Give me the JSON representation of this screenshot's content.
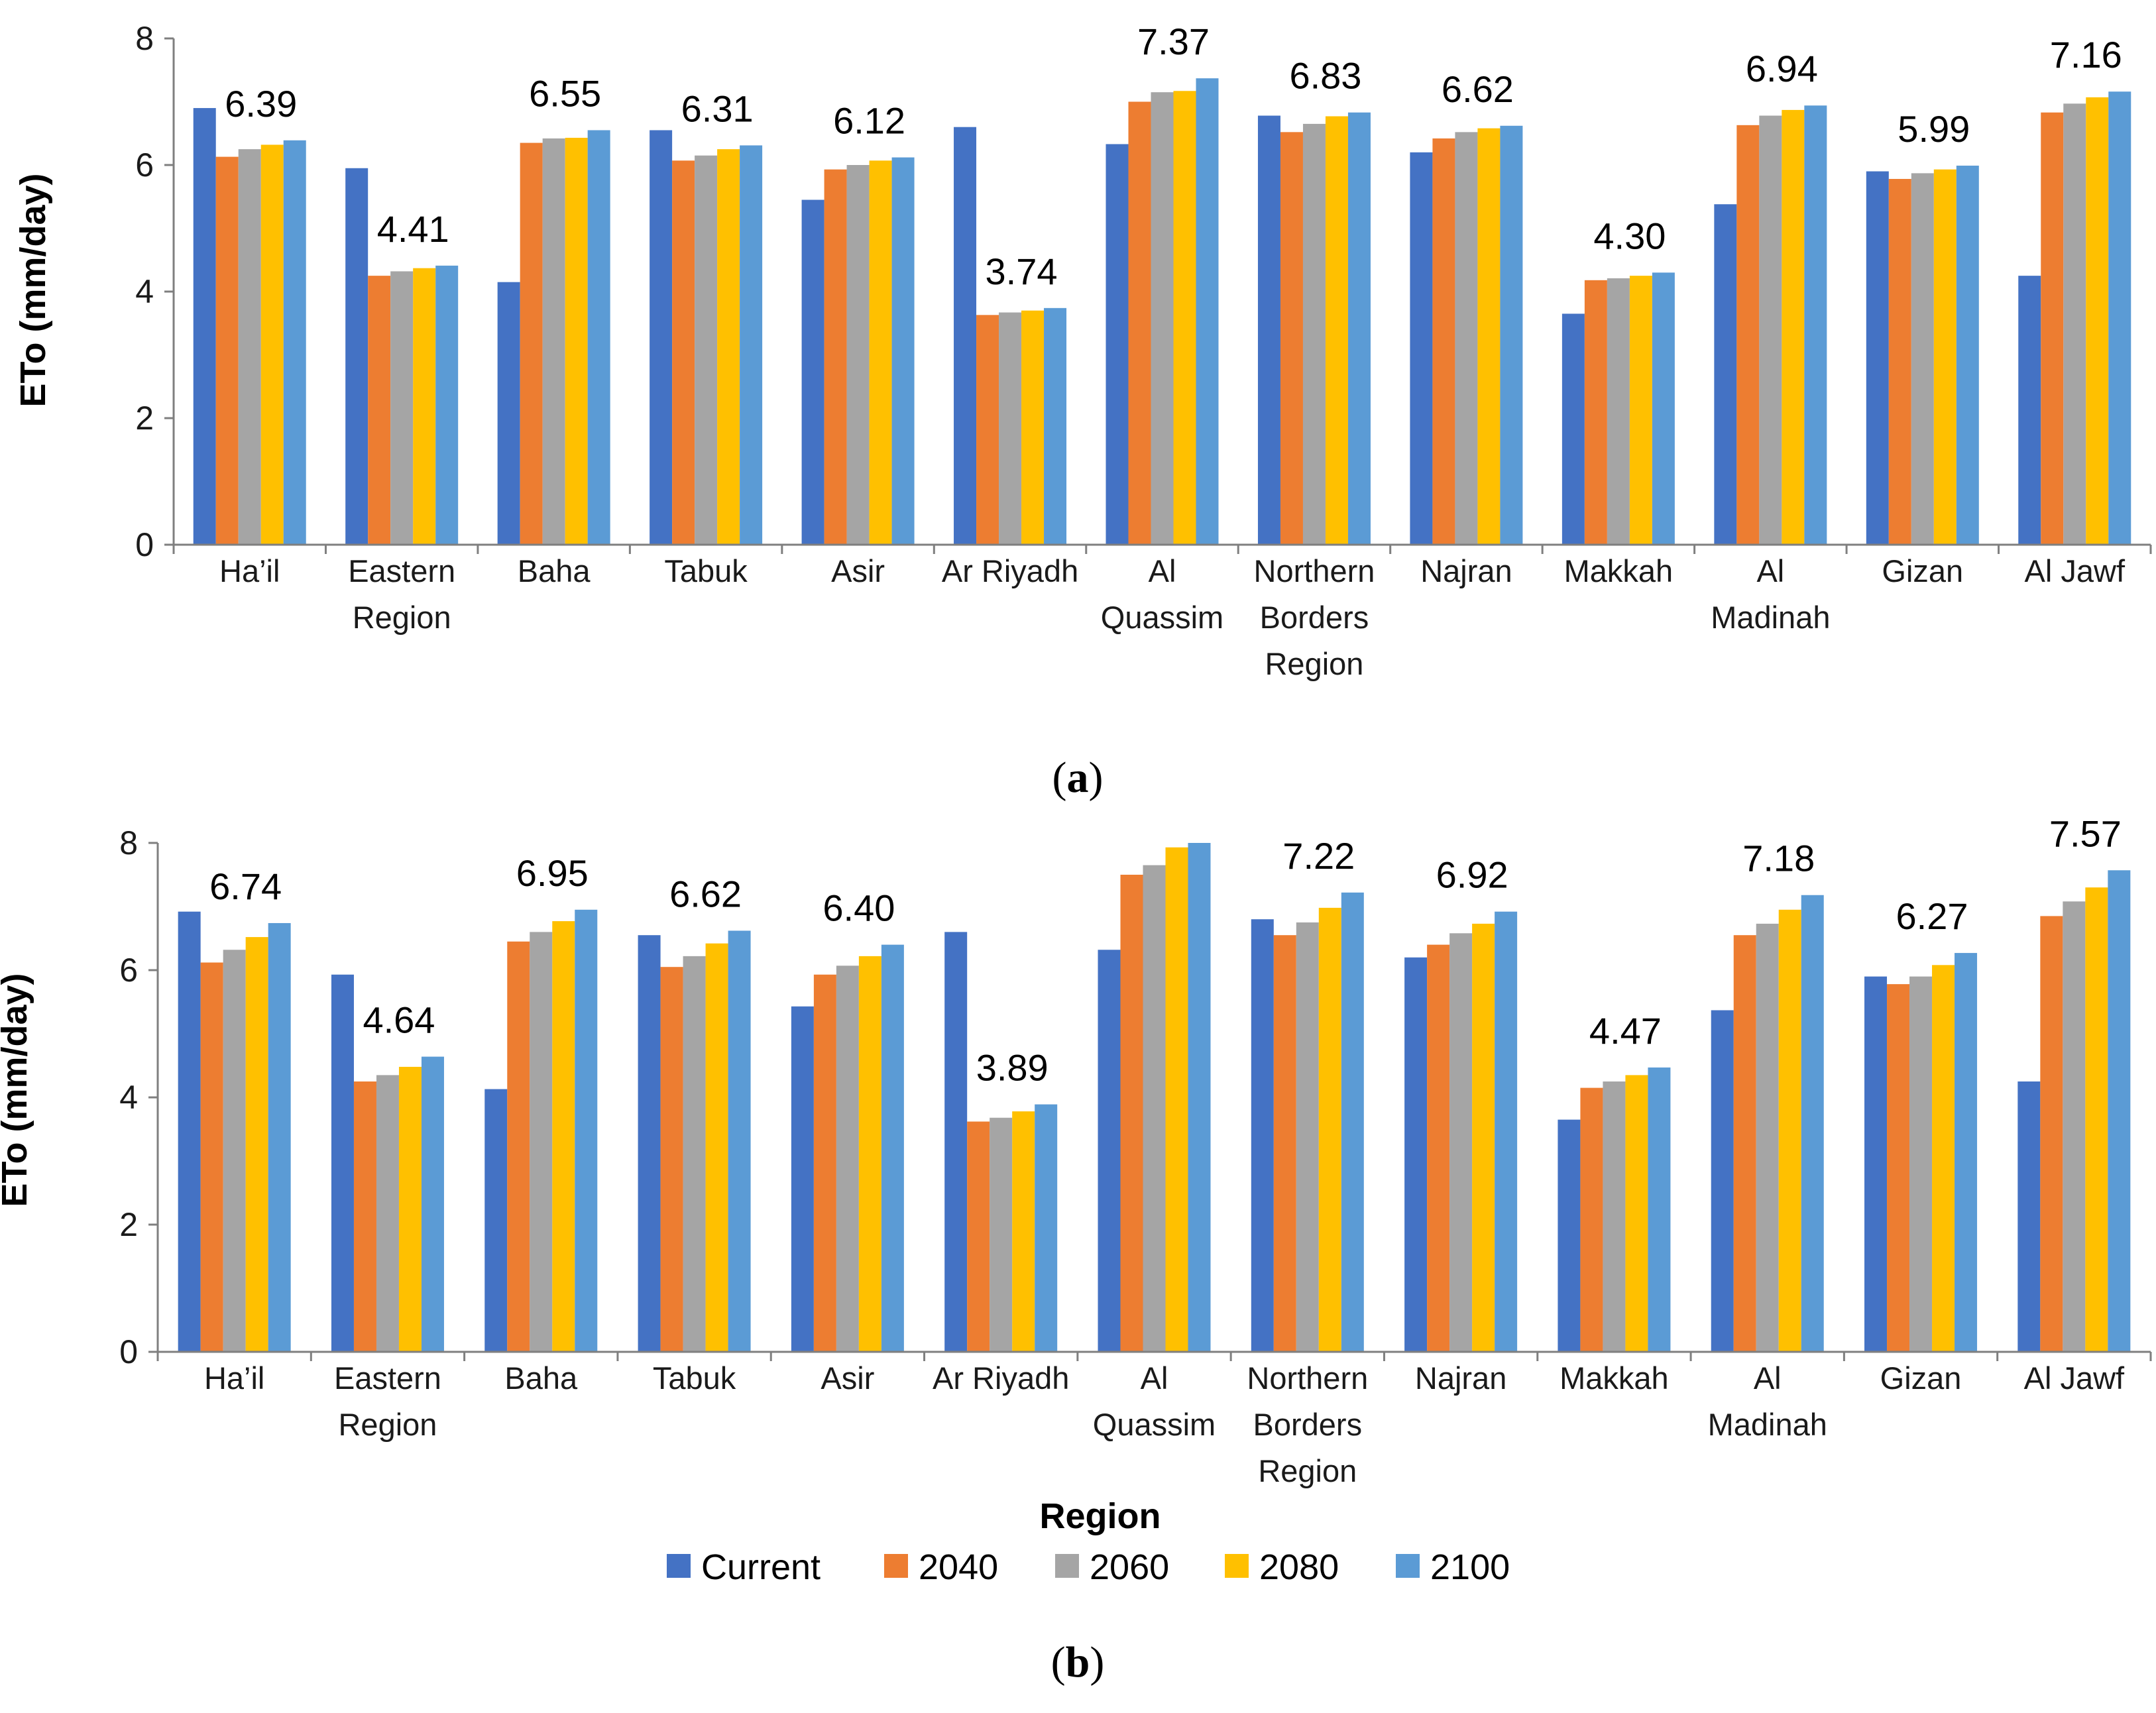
{
  "series_names": [
    "Current",
    "2040",
    "2060",
    "2080",
    "2100"
  ],
  "colors": {
    "Current": "#4472C4",
    "2040": "#ED7D31",
    "2060": "#A5A5A5",
    "2080": "#FFC000",
    "2100": "#5B9BD5"
  },
  "chart_data": [
    {
      "type": "bar",
      "panel": "a",
      "caption_letter": "a",
      "ylabel": "ETo (mm/day)",
      "xlabel": "",
      "ylim": [
        0,
        8
      ],
      "yticks": [
        "0",
        "2",
        "4",
        "6",
        "8"
      ],
      "categories": [
        [
          "Ha’il"
        ],
        [
          "Eastern",
          "Region"
        ],
        [
          "Baha"
        ],
        [
          "Tabuk"
        ],
        [
          "Asir"
        ],
        [
          "Ar Riyadh"
        ],
        [
          "Al",
          "Quassim"
        ],
        [
          "Northern",
          "Borders",
          "Region"
        ],
        [
          "Najran"
        ],
        [
          "Makkah"
        ],
        [
          "Al",
          "Madinah"
        ],
        [
          "Gizan"
        ],
        [
          "Al Jawf"
        ]
      ],
      "series": [
        {
          "name": "Current",
          "values": [
            6.9,
            5.95,
            4.15,
            6.55,
            5.45,
            6.6,
            6.33,
            6.78,
            6.2,
            3.65,
            5.38,
            5.9,
            4.25
          ]
        },
        {
          "name": "2040",
          "values": [
            6.13,
            4.25,
            6.35,
            6.07,
            5.93,
            3.63,
            7.0,
            6.52,
            6.42,
            4.18,
            6.63,
            5.78,
            6.83
          ]
        },
        {
          "name": "2060",
          "values": [
            6.25,
            4.32,
            6.42,
            6.15,
            6.0,
            3.67,
            7.15,
            6.65,
            6.52,
            4.21,
            6.78,
            5.87,
            6.97
          ]
        },
        {
          "name": "2080",
          "values": [
            6.32,
            4.37,
            6.43,
            6.25,
            6.07,
            3.7,
            7.17,
            6.77,
            6.58,
            4.25,
            6.87,
            5.93,
            7.07
          ]
        },
        {
          "name": "2100",
          "values": [
            6.39,
            4.41,
            6.55,
            6.31,
            6.12,
            3.74,
            7.37,
            6.83,
            6.62,
            4.3,
            6.94,
            5.99,
            7.16
          ]
        }
      ],
      "data_labels": [
        "6.39",
        "4.41",
        "6.55",
        "6.31",
        "6.12",
        "3.74",
        "7.37",
        "6.83",
        "6.62",
        "4.30",
        "6.94",
        "5.99",
        "7.16"
      ]
    },
    {
      "type": "bar",
      "panel": "b",
      "caption_letter": "b",
      "ylabel": "ETo (mm/day)",
      "xlabel": "Region",
      "ylim": [
        0,
        8
      ],
      "yticks": [
        "0",
        "2",
        "4",
        "6",
        "8"
      ],
      "categories": [
        [
          "Ha’il"
        ],
        [
          "Eastern",
          "Region"
        ],
        [
          "Baha"
        ],
        [
          "Tabuk"
        ],
        [
          "Asir"
        ],
        [
          "Ar Riyadh"
        ],
        [
          "Al",
          "Quassim"
        ],
        [
          "Northern",
          "Borders",
          "Region"
        ],
        [
          "Najran"
        ],
        [
          "Makkah"
        ],
        [
          "Al",
          "Madinah"
        ],
        [
          "Gizan"
        ],
        [
          "Al Jawf"
        ]
      ],
      "series": [
        {
          "name": "Current",
          "values": [
            6.92,
            5.93,
            4.13,
            6.55,
            5.43,
            6.6,
            6.32,
            6.8,
            6.2,
            3.65,
            5.37,
            5.9,
            4.25
          ]
        },
        {
          "name": "2040",
          "values": [
            6.12,
            4.25,
            6.45,
            6.05,
            5.93,
            3.62,
            7.5,
            6.55,
            6.4,
            4.15,
            6.55,
            5.78,
            6.85
          ]
        },
        {
          "name": "2060",
          "values": [
            6.32,
            4.35,
            6.6,
            6.22,
            6.07,
            3.68,
            7.65,
            6.75,
            6.58,
            4.25,
            6.73,
            5.9,
            7.08
          ]
        },
        {
          "name": "2080",
          "values": [
            6.52,
            4.48,
            6.77,
            6.42,
            6.22,
            3.78,
            7.93,
            6.98,
            6.73,
            4.35,
            6.95,
            6.08,
            7.3
          ]
        },
        {
          "name": "2100",
          "values": [
            6.74,
            4.64,
            6.95,
            6.62,
            6.4,
            3.89,
            8.0,
            7.22,
            6.92,
            4.47,
            7.18,
            6.27,
            7.57
          ]
        }
      ],
      "data_labels": [
        "6.74",
        "4.64",
        "6.95",
        "6.62",
        "6.40",
        "3.89",
        "",
        "7.22",
        "6.92",
        "4.47",
        "7.18",
        "6.27",
        "7.57"
      ]
    }
  ]
}
